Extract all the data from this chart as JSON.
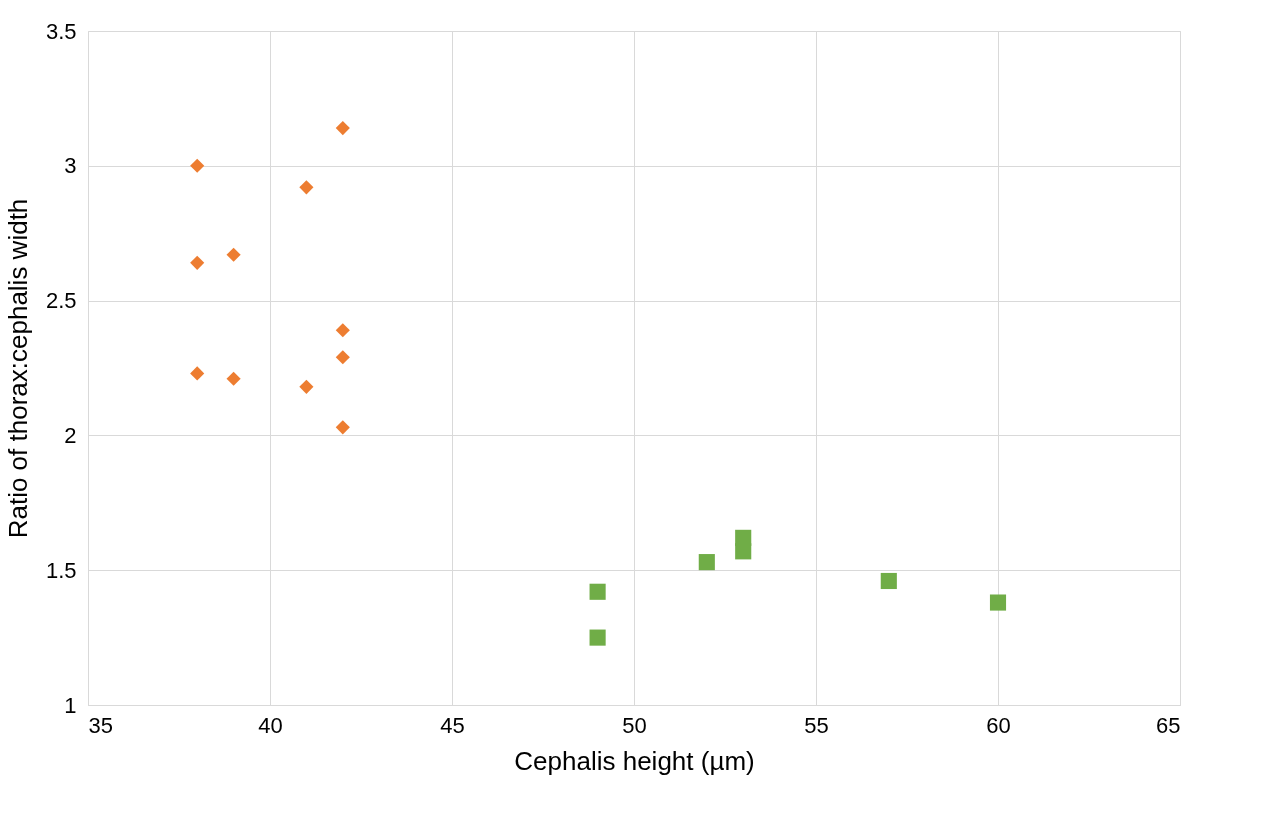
{
  "chart_data": {
    "type": "scatter",
    "xlabel": "Cephalis height (µm)",
    "ylabel": "Ratio of thorax:cephalis width",
    "xlim": [
      35,
      65
    ],
    "xticks": [
      35,
      40,
      45,
      50,
      55,
      60,
      65
    ],
    "ylim": [
      1,
      3.5
    ],
    "yticks": [
      1,
      1.5,
      2,
      2.5,
      3,
      3.5
    ],
    "grid": true,
    "series": [
      {
        "color": "#ed7d31",
        "marker": "diamond",
        "x": [
          38,
          42,
          41,
          38,
          39,
          42,
          42,
          38,
          39,
          41,
          42
        ],
        "values": [
          3.0,
          3.14,
          2.92,
          2.64,
          2.67,
          2.39,
          2.29,
          2.23,
          2.21,
          2.18,
          2.03
        ]
      },
      {
        "color": "#70ad47",
        "marker": "square",
        "x": [
          49,
          49,
          52,
          53,
          53,
          57,
          60
        ],
        "values": [
          1.42,
          1.25,
          1.53,
          1.62,
          1.57,
          1.46,
          1.38
        ]
      }
    ]
  }
}
